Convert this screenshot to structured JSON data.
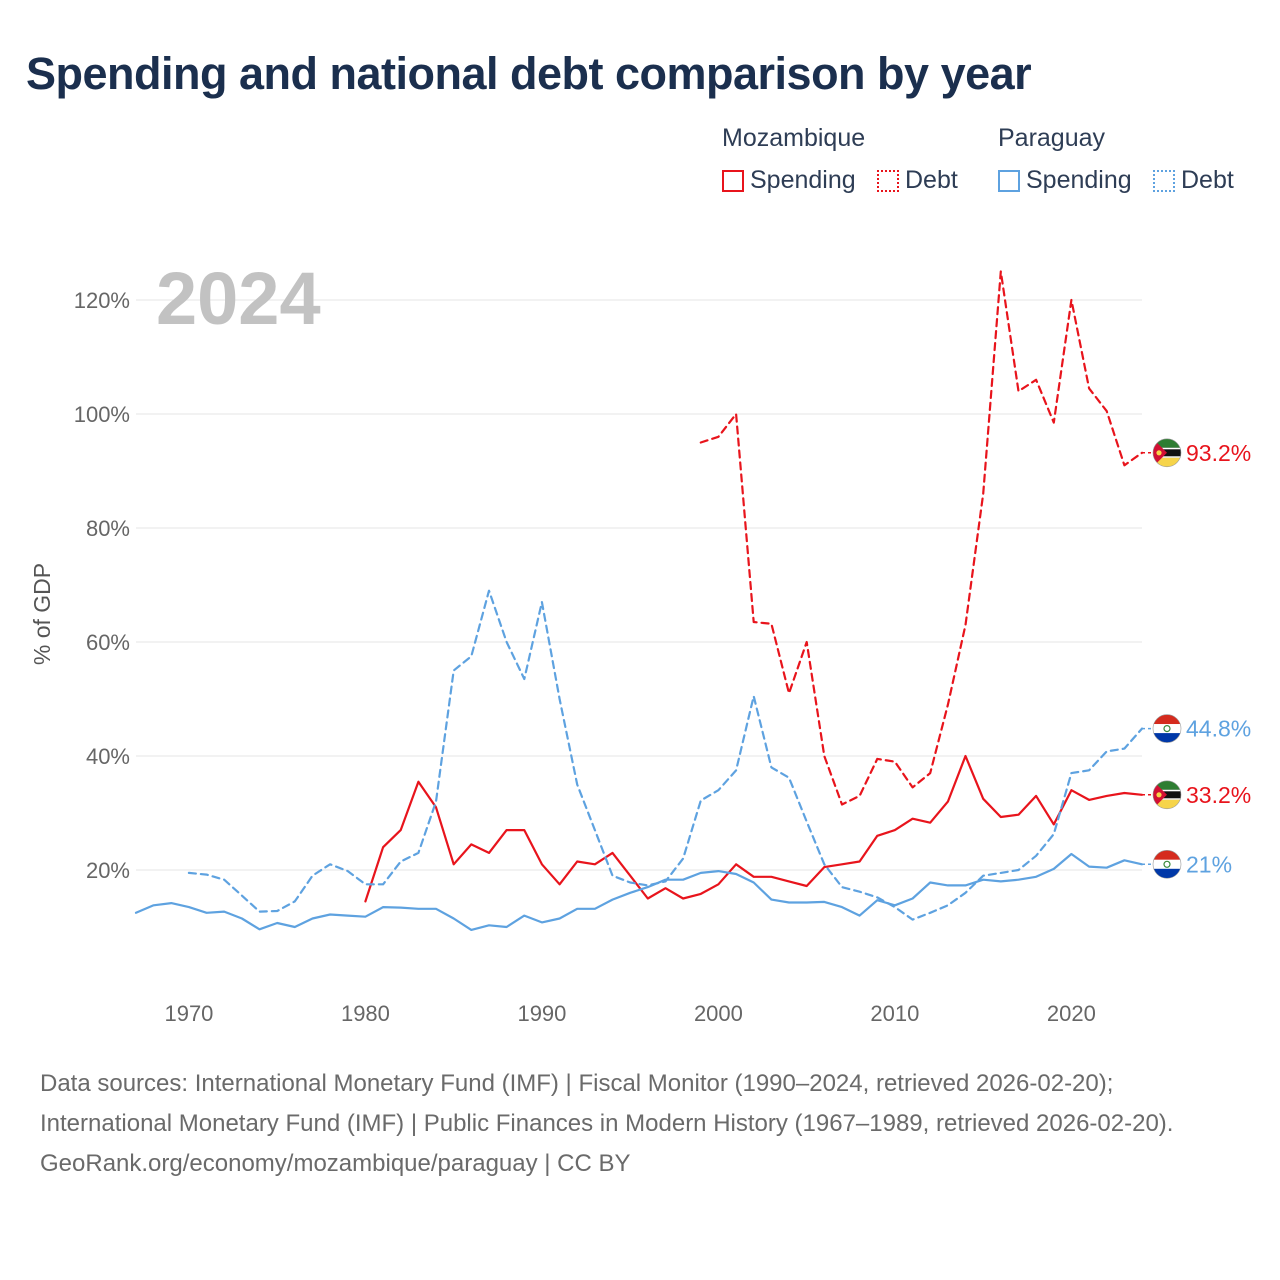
{
  "title": "Spending and national debt comparison by year",
  "legend": {
    "groups": [
      {
        "country": "Mozambique",
        "color": "#e8141c",
        "spending_label": "Spending",
        "debt_label": "Debt"
      },
      {
        "country": "Paraguay",
        "color": "#5ea2e0",
        "spending_label": "Spending",
        "debt_label": "Debt"
      }
    ]
  },
  "year_watermark": "2024",
  "sources": {
    "line1": "Data sources: International Monetary Fund (IMF) | Fiscal Monitor (1990–2024, retrieved 2026-02-20); International Monetary Fund (IMF) | Public Finances in Modern History (1967–1989, retrieved 2026-02-20).",
    "line2": "GeoRank.org/economy/mozambique/paraguay | CC BY"
  },
  "chart_data": {
    "type": "line",
    "title": "Spending and national debt comparison by year",
    "xlabel": "",
    "ylabel": "% of GDP",
    "xlim": [
      1967,
      2024
    ],
    "ylim": [
      0,
      125
    ],
    "x_ticks": [
      1970,
      1980,
      1990,
      2000,
      2010,
      2020
    ],
    "x_tick_labels": [
      "1970",
      "1980",
      "1990",
      "2000",
      "2010",
      "2020"
    ],
    "y_ticks": [
      20,
      40,
      60,
      80,
      100,
      120
    ],
    "y_tick_labels": [
      "20%",
      "40%",
      "60%",
      "80%",
      "100%",
      "120%"
    ],
    "grid": true,
    "series": [
      {
        "name": "Mozambique Spending",
        "color": "#e8141c",
        "dash": "solid",
        "end_label": "33.2%",
        "points": [
          [
            1980,
            14.5
          ],
          [
            1981,
            24
          ],
          [
            1982,
            27
          ],
          [
            1983,
            35.5
          ],
          [
            1984,
            31
          ],
          [
            1985,
            21
          ],
          [
            1986,
            24.5
          ],
          [
            1987,
            23
          ],
          [
            1988,
            27
          ],
          [
            1989,
            27
          ],
          [
            1990,
            21
          ],
          [
            1991,
            17.5
          ],
          [
            1992,
            21.5
          ],
          [
            1993,
            21
          ],
          [
            1994,
            23
          ],
          [
            1995,
            19
          ],
          [
            1996,
            15
          ],
          [
            1997,
            16.8
          ],
          [
            1998,
            15
          ],
          [
            1999,
            15.8
          ],
          [
            2000,
            17.5
          ],
          [
            2001,
            21
          ],
          [
            2002,
            18.8
          ],
          [
            2003,
            18.8
          ],
          [
            2004,
            18
          ],
          [
            2005,
            17.2
          ],
          [
            2006,
            20.5
          ],
          [
            2007,
            21
          ],
          [
            2008,
            21.5
          ],
          [
            2009,
            26
          ],
          [
            2010,
            27
          ],
          [
            2011,
            29
          ],
          [
            2012,
            28.3
          ],
          [
            2013,
            32
          ],
          [
            2014,
            40
          ],
          [
            2015,
            32.5
          ],
          [
            2016,
            29.3
          ],
          [
            2017,
            29.7
          ],
          [
            2018,
            33
          ],
          [
            2019,
            28
          ],
          [
            2020,
            34
          ],
          [
            2021,
            32.3
          ],
          [
            2022,
            33
          ],
          [
            2023,
            33.5
          ],
          [
            2024,
            33.2
          ]
        ]
      },
      {
        "name": "Mozambique Debt",
        "color": "#e8141c",
        "dash": "dashed",
        "end_label": "93.2%",
        "points": [
          [
            1999,
            95
          ],
          [
            2000,
            96
          ],
          [
            2001,
            100
          ],
          [
            2002,
            63.5
          ],
          [
            2003,
            63.2
          ],
          [
            2004,
            51
          ],
          [
            2005,
            60
          ],
          [
            2006,
            40
          ],
          [
            2007,
            31.5
          ],
          [
            2008,
            33
          ],
          [
            2009,
            39.5
          ],
          [
            2010,
            39
          ],
          [
            2011,
            34.5
          ],
          [
            2012,
            37
          ],
          [
            2013,
            49
          ],
          [
            2014,
            63
          ],
          [
            2015,
            86
          ],
          [
            2016,
            125
          ],
          [
            2017,
            104
          ],
          [
            2018,
            106
          ],
          [
            2019,
            98.5
          ],
          [
            2020,
            120
          ],
          [
            2021,
            104.5
          ],
          [
            2022,
            100.5
          ],
          [
            2023,
            91
          ],
          [
            2024,
            93.2
          ]
        ]
      },
      {
        "name": "Paraguay Spending",
        "color": "#5ea2e0",
        "dash": "solid",
        "end_label": "21%",
        "points": [
          [
            1967,
            12.5
          ],
          [
            1968,
            13.8
          ],
          [
            1969,
            14.2
          ],
          [
            1970,
            13.5
          ],
          [
            1971,
            12.5
          ],
          [
            1972,
            12.7
          ],
          [
            1973,
            11.5
          ],
          [
            1974,
            9.6
          ],
          [
            1975,
            10.7
          ],
          [
            1976,
            10
          ],
          [
            1977,
            11.5
          ],
          [
            1978,
            12.2
          ],
          [
            1979,
            12
          ],
          [
            1980,
            11.8
          ],
          [
            1981,
            13.5
          ],
          [
            1982,
            13.4
          ],
          [
            1983,
            13.2
          ],
          [
            1984,
            13.2
          ],
          [
            1985,
            11.5
          ],
          [
            1986,
            9.5
          ],
          [
            1987,
            10.3
          ],
          [
            1988,
            10
          ],
          [
            1989,
            12
          ],
          [
            1990,
            10.8
          ],
          [
            1991,
            11.5
          ],
          [
            1992,
            13.2
          ],
          [
            1993,
            13.2
          ],
          [
            1994,
            14.8
          ],
          [
            1995,
            16
          ],
          [
            1996,
            17
          ],
          [
            1997,
            18.3
          ],
          [
            1998,
            18.3
          ],
          [
            1999,
            19.5
          ],
          [
            2000,
            19.8
          ],
          [
            2001,
            19.3
          ],
          [
            2002,
            17.8
          ],
          [
            2003,
            14.8
          ],
          [
            2004,
            14.3
          ],
          [
            2005,
            14.3
          ],
          [
            2006,
            14.4
          ],
          [
            2007,
            13.5
          ],
          [
            2008,
            12
          ],
          [
            2009,
            14.7
          ],
          [
            2010,
            13.8
          ],
          [
            2011,
            15
          ],
          [
            2012,
            17.8
          ],
          [
            2013,
            17.3
          ],
          [
            2014,
            17.3
          ],
          [
            2015,
            18.3
          ],
          [
            2016,
            18
          ],
          [
            2017,
            18.3
          ],
          [
            2018,
            18.8
          ],
          [
            2019,
            20.2
          ],
          [
            2020,
            22.8
          ],
          [
            2021,
            20.6
          ],
          [
            2022,
            20.4
          ],
          [
            2023,
            21.7
          ],
          [
            2024,
            21
          ]
        ]
      },
      {
        "name": "Paraguay Debt",
        "color": "#5ea2e0",
        "dash": "dashed",
        "end_label": "44.8%",
        "points": [
          [
            1970,
            19.5
          ],
          [
            1971,
            19.2
          ],
          [
            1972,
            18.3
          ],
          [
            1973,
            15.5
          ],
          [
            1974,
            12.7
          ],
          [
            1975,
            12.8
          ],
          [
            1976,
            14.5
          ],
          [
            1977,
            19
          ],
          [
            1978,
            21
          ],
          [
            1979,
            19.8
          ],
          [
            1980,
            17.5
          ],
          [
            1981,
            17.5
          ],
          [
            1982,
            21.5
          ],
          [
            1983,
            23
          ],
          [
            1984,
            32
          ],
          [
            1985,
            55
          ],
          [
            1986,
            57.5
          ],
          [
            1987,
            69
          ],
          [
            1988,
            60
          ],
          [
            1989,
            53.5
          ],
          [
            1990,
            67
          ],
          [
            1991,
            50
          ],
          [
            1992,
            35
          ],
          [
            1993,
            27
          ],
          [
            1994,
            19
          ],
          [
            1995,
            17.8
          ],
          [
            1996,
            17.3
          ],
          [
            1997,
            18
          ],
          [
            1998,
            22
          ],
          [
            1999,
            32.2
          ],
          [
            2000,
            34
          ],
          [
            2001,
            37.5
          ],
          [
            2002,
            50.5
          ],
          [
            2003,
            38
          ],
          [
            2004,
            36.2
          ],
          [
            2005,
            28.5
          ],
          [
            2006,
            21
          ],
          [
            2007,
            17
          ],
          [
            2008,
            16.2
          ],
          [
            2009,
            15.2
          ],
          [
            2010,
            13.5
          ],
          [
            2011,
            11.3
          ],
          [
            2012,
            12.5
          ],
          [
            2013,
            13.8
          ],
          [
            2014,
            16
          ],
          [
            2015,
            19
          ],
          [
            2016,
            19.5
          ],
          [
            2017,
            20
          ],
          [
            2018,
            22.5
          ],
          [
            2019,
            26.3
          ],
          [
            2020,
            37
          ],
          [
            2021,
            37.5
          ],
          [
            2022,
            40.8
          ],
          [
            2023,
            41.3
          ],
          [
            2024,
            44.8
          ]
        ]
      }
    ]
  }
}
